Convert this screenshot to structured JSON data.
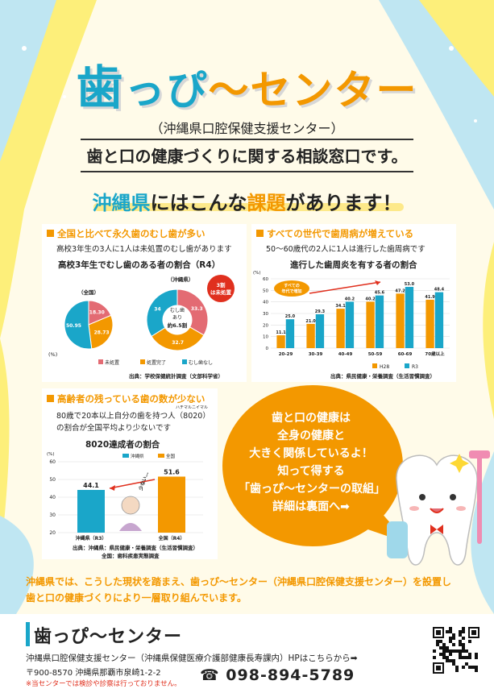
{
  "header": {
    "title": "歯っぴ〜センター",
    "title_part1": "歯",
    "title_part2": "っぴ",
    "title_part3": "〜センター",
    "subtitle": "（沖縄県口腔保健支援センター）",
    "tagline": "歯と口の健康づくりに関する相談窓口です。"
  },
  "issues": {
    "prefix": "沖縄県",
    "middle": "にはこんな",
    "keyword": "課題",
    "suffix": "があります！"
  },
  "section1": {
    "heading": "全国と比べて永久歯のむし歯が多い",
    "sub": "高校3年生の3人に1人は未処置のむし歯があります",
    "chart_title": "高校3年生でむし歯のある者の割合（R4）",
    "label_national": "（全国）",
    "label_okinawa": "（沖縄県）",
    "callout": "3割は未処置",
    "center_line1": "むし歯",
    "center_line2": "あり",
    "center_line3": "約6.5割",
    "unit": "(%)",
    "source": "出典：学校保健統計調査（文部科学省）"
  },
  "section2": {
    "heading": "すべての世代で歯周病が増えている",
    "sub": "50〜60歳代の2人に1人は進行した歯周病です",
    "chart_title": "進行した歯周炎を有する者の割合",
    "annotation": "すべての年代で増加",
    "unit": "(%)",
    "source": "出典：県民健康・栄養調査（生活習慣調査）"
  },
  "section3": {
    "heading": "高齢者の残っている歯の数が少ない",
    "sub1": "80歳で20本以上自分の歯を持つ人（8020）",
    "ruby": "ハチマルニイマル",
    "sub2": "の割合が全国平均より少ないです",
    "chart_title": "8020達成者の割合",
    "annotation": "少ない…",
    "unit": "(%)",
    "source1": "出典：沖縄県：県民健康・栄養調査（生活習慣調査）",
    "source2": "全国：歯科疾患実態調査"
  },
  "bubble": {
    "lines": [
      "歯と口の健康は",
      "全身の健康と",
      "大きく関係しているよ！",
      "知って得する",
      "「歯っぴ〜センターの取組」",
      "詳細は裏面へ➡"
    ]
  },
  "bottom_note": {
    "line1": "沖縄県では、こうした現状を踏まえ、歯っぴ〜センター（沖縄県口腔保健支援センター）を設置し",
    "line2": "歯と口の健康づくりにより一層取り組んでいます。"
  },
  "footer": {
    "title": "歯っぴ〜センター",
    "org": "沖縄県口腔保健支援センター（沖縄県保健医療介護部健康長寿課内）HPはこちらから➡",
    "address": "〒900-8570 沖縄県那覇市泉崎1-2-2",
    "phone": "098-894-5789",
    "note": "※当センターでは検診や診察は行っておりません。"
  },
  "colors": {
    "blue": "#1aa6c9",
    "orange": "#f39800",
    "pink": "#e36b73",
    "yellow_bg": "#fdef7a",
    "light_blue_bg": "#bfe6f2"
  },
  "chart_data": [
    {
      "type": "pie",
      "title": "高校3年生でむし歯のある者の割合（R4）",
      "series_name": "全国",
      "categories": [
        "未処置",
        "処置完了",
        "むし歯なし"
      ],
      "values": [
        18.3,
        28.73,
        50.95
      ],
      "value_labels": [
        "18.30",
        "28.73",
        "50.95"
      ]
    },
    {
      "type": "pie",
      "title": "高校3年生でむし歯のある者の割合（R4）",
      "series_name": "沖縄県",
      "categories": [
        "未処置",
        "処置完了",
        "むし歯なし"
      ],
      "values": [
        33.3,
        32.7,
        34.0
      ]
    },
    {
      "type": "bar",
      "title": "進行した歯周炎を有する者の割合",
      "categories": [
        "20-29",
        "30-39",
        "40-49",
        "50-59",
        "60-69",
        "70歳以上"
      ],
      "series": [
        {
          "name": "H28",
          "values": [
            11.1,
            21.0,
            34.1,
            40.2,
            47.2,
            41.9
          ]
        },
        {
          "name": "R3",
          "values": [
            25.0,
            29.3,
            40.2,
            45.6,
            53.0,
            48.4
          ]
        }
      ],
      "ylabel": "(%)",
      "ylim": [
        0,
        60
      ]
    },
    {
      "type": "bar",
      "title": "8020達成者の割合",
      "categories": [
        "沖縄県（R3）",
        "全国（R4）"
      ],
      "series": [
        {
          "name": "沖縄県",
          "values": [
            44.1,
            null
          ]
        },
        {
          "name": "全国",
          "values": [
            null,
            51.6
          ]
        }
      ],
      "ylabel": "(%)",
      "ylim": [
        20,
        60
      ],
      "yticks": [
        20,
        30,
        40,
        50,
        60
      ]
    }
  ]
}
